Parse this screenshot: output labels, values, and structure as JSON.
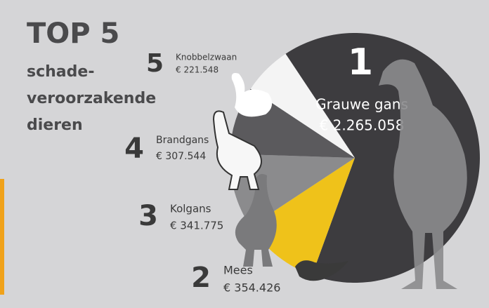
{
  "chart_data": {
    "type": "pie",
    "title": "TOP 5",
    "subtitle": [
      "schade-",
      "veroorzakende",
      "dieren"
    ],
    "categories": [
      "Grauwe gans",
      "Mees",
      "Kolgans",
      "Brandgans",
      "Knobbelzwaan"
    ],
    "ranks": [
      1,
      2,
      3,
      4,
      5
    ],
    "values": [
      2265058,
      354426,
      341775,
      307544,
      221548
    ],
    "value_labels": [
      "€ 2.265.058",
      "€ 354.426",
      "€ 341.775",
      "€ 307.544",
      "€ 221.548"
    ],
    "colors": [
      "#3d3c3f",
      "#efc21a",
      "#8b8b8d",
      "#5b5a5d",
      "#f4f4f4"
    ]
  }
}
